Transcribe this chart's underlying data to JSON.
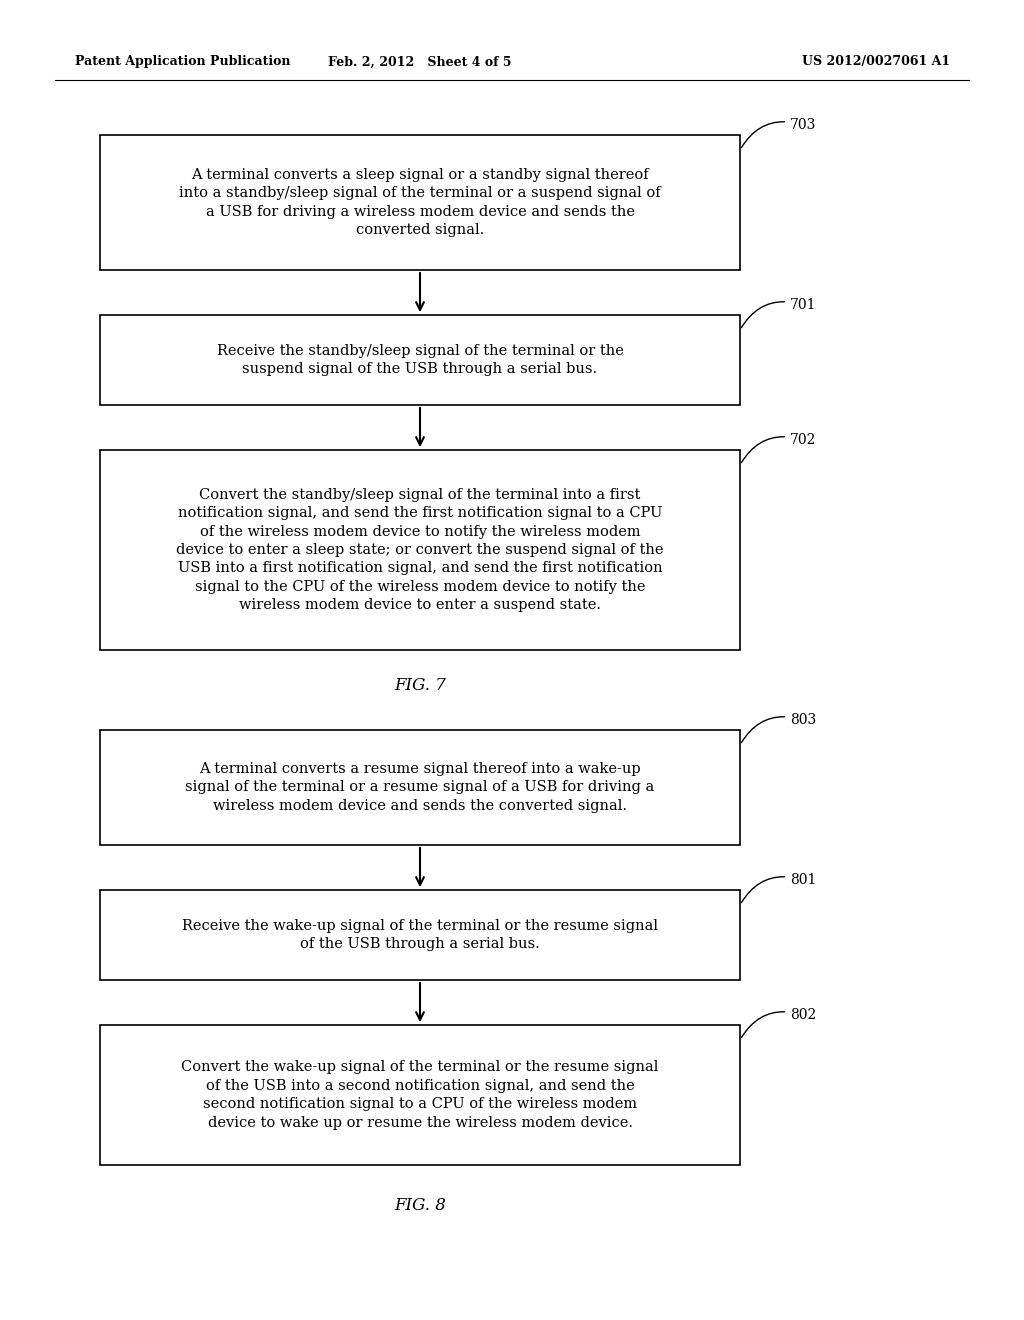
{
  "header_left": "Patent Application Publication",
  "header_center": "Feb. 2, 2012   Sheet 4 of 5",
  "header_right": "US 2012/0027061 A1",
  "bg_color": "#ffffff",
  "fig7_label": "FIG. 7",
  "fig8_label": "FIG. 8",
  "box703_text": "A terminal converts a sleep signal or a standby signal thereof\ninto a standby/sleep signal of the terminal or a suspend signal of\na USB for driving a wireless modem device and sends the\nconverted signal.",
  "box701_text": "Receive the standby/sleep signal of the terminal or the\nsuspend signal of the USB through a serial bus.",
  "box702_text": "Convert the standby/sleep signal of the terminal into a first\nnotification signal, and send the first notification signal to a CPU\nof the wireless modem device to notify the wireless modem\ndevice to enter a sleep state; or convert the suspend signal of the\nUSB into a first notification signal, and send the first notification\nsignal to the CPU of the wireless modem device to notify the\nwireless modem device to enter a suspend state.",
  "box803_text": "A terminal converts a resume signal thereof into a wake-up\nsignal of the terminal or a resume signal of a USB for driving a\nwireless modem device and sends the converted signal.",
  "box801_text": "Receive the wake-up signal of the terminal or the resume signal\nof the USB through a serial bus.",
  "box802_text": "Convert the wake-up signal of the terminal or the resume signal\nof the USB into a second notification signal, and send the\nsecond notification signal to a CPU of the wireless modem\ndevice to wake up or resume the wireless modem device."
}
